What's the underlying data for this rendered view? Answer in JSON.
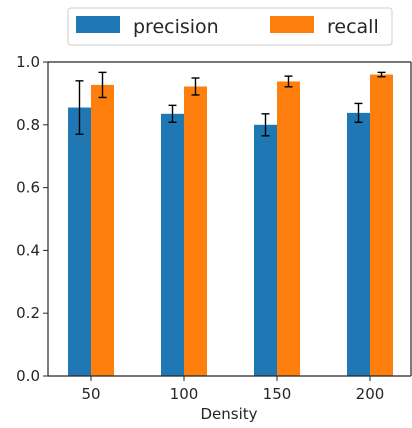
{
  "chart_data": {
    "type": "bar",
    "categories": [
      "50",
      "100",
      "150",
      "200"
    ],
    "series": [
      {
        "name": "precision",
        "color": "#1f77b4",
        "values": [
          0.855,
          0.835,
          0.8,
          0.838
        ],
        "errors": [
          0.085,
          0.027,
          0.035,
          0.03
        ]
      },
      {
        "name": "recall",
        "color": "#ff7f0e",
        "values": [
          0.927,
          0.922,
          0.938,
          0.96
        ],
        "errors": [
          0.04,
          0.027,
          0.017,
          0.007
        ]
      }
    ],
    "xlabel": "Density",
    "ylabel": "",
    "ylim": [
      0.0,
      1.0
    ],
    "yticks": [
      "0.0",
      "0.2",
      "0.4",
      "0.6",
      "0.8",
      "1.0"
    ],
    "grid": false,
    "legend_position": "top-center"
  }
}
